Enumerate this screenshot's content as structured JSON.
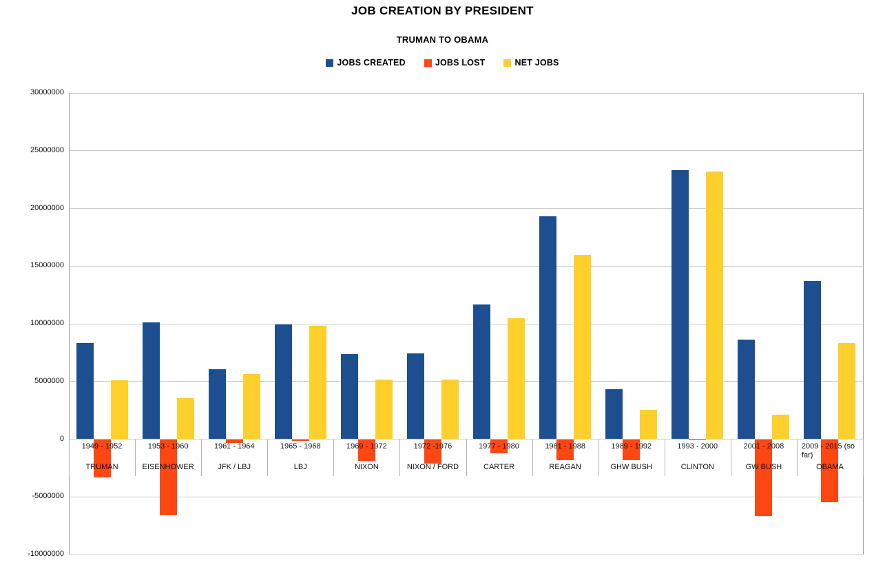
{
  "title": "JOB CREATION BY PRESIDENT",
  "subtitle": "TRUMAN TO OBAMA",
  "colors": {
    "jobs_created": "#1d4e8f",
    "jobs_lost": "#ff4713",
    "net_jobs": "#ffd02b",
    "gridline": "#c9c9c9",
    "axis_frame": "#a0a0a0"
  },
  "legend": [
    {
      "label": "JOBS CREATED",
      "color": "#1d4e8f"
    },
    {
      "label": "JOBS LOST",
      "color": "#ff4713"
    },
    {
      "label": "NET JOBS",
      "color": "#ffd02b"
    }
  ],
  "chart_data": {
    "type": "bar",
    "title": "JOB CREATION BY PRESIDENT",
    "subtitle": "TRUMAN TO OBAMA",
    "grid": true,
    "legend_position": "top",
    "ylim": [
      -10000000,
      30000000
    ],
    "ytick_step": 5000000,
    "yticks": [
      30000000,
      25000000,
      20000000,
      15000000,
      10000000,
      5000000,
      0,
      -5000000,
      -10000000
    ],
    "ytick_labels": [
      "30000000",
      "25000000",
      "20000000",
      "15000000",
      "10000000",
      "5000000",
      "0",
      "-5000000",
      "-10000000"
    ],
    "categories": [
      {
        "years": "1949 - 1952",
        "president": "TRUMAN"
      },
      {
        "years": "1953 - 1960",
        "president": "EISENHOWER"
      },
      {
        "years": "1961 - 1964",
        "president": "JFK / LBJ"
      },
      {
        "years": "1965 - 1968",
        "president": "LBJ"
      },
      {
        "years": "1969 - 1972",
        "president": "NIXON"
      },
      {
        "years": "1972 -1976",
        "president": "NIXON / FORD"
      },
      {
        "years": "1977 - 1980",
        "president": "CARTER"
      },
      {
        "years": "1981 - 1988",
        "president": "REAGAN"
      },
      {
        "years": "1989 - 1992",
        "president": "GHW BUSH"
      },
      {
        "years": "1993 - 2000",
        "president": "CLINTON"
      },
      {
        "years": "2001 - 2008",
        "president": "GW BUSH"
      },
      {
        "years": "2009 - 2015 (so far)",
        "president": "OBAMA"
      }
    ],
    "series": [
      {
        "name": "JOBS CREATED",
        "color": "#1d4e8f",
        "values": [
          8300000,
          10100000,
          6050000,
          9950000,
          7400000,
          7450000,
          11700000,
          19300000,
          4300000,
          23300000,
          8650000,
          13700000
        ]
      },
      {
        "name": "JOBS LOST",
        "color": "#ff4713",
        "values": [
          -3300000,
          -6600000,
          -300000,
          -150000,
          -1900000,
          -2100000,
          -1200000,
          -1800000,
          -1800000,
          -100000,
          -6650000,
          -5450000
        ]
      },
      {
        "name": "NET JOBS",
        "color": "#ffd02b",
        "values": [
          5100000,
          3550000,
          5650000,
          9800000,
          5150000,
          5150000,
          10500000,
          16000000,
          2550000,
          23200000,
          2100000,
          8300000
        ]
      }
    ]
  }
}
